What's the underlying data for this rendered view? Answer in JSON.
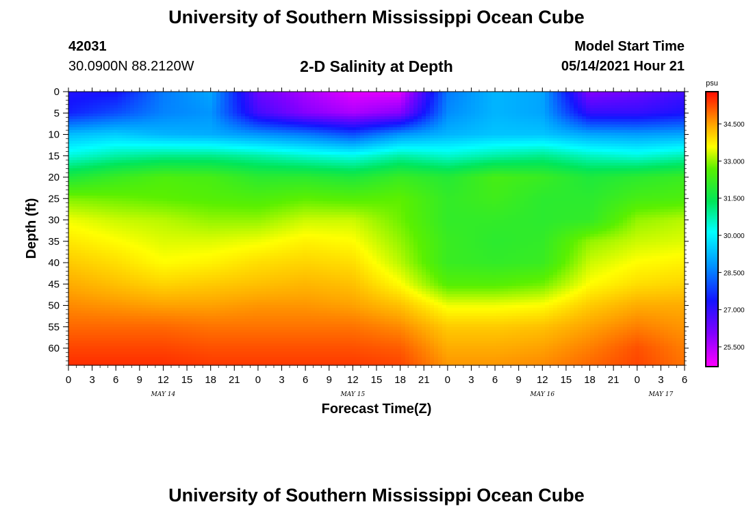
{
  "header": {
    "title": "University of Southern Mississippi Ocean Cube",
    "station_id": "42031",
    "location": "30.0900N  88.2120W",
    "plot_title": "2-D Salinity at Depth",
    "model_label": "Model Start Time",
    "model_time": "05/14/2021 Hour 21"
  },
  "footer": {
    "title": "University of Southern Mississippi Ocean Cube"
  },
  "chart_data": {
    "type": "heatmap",
    "title": "2-D Salinity at Depth",
    "xlabel": "Forecast Time(Z)",
    "ylabel": "Depth (ft)",
    "x_tick_labels": [
      "0",
      "3",
      "6",
      "9",
      "12",
      "15",
      "18",
      "21",
      "0",
      "3",
      "6",
      "9",
      "12",
      "15",
      "18",
      "21",
      "0",
      "3",
      "6",
      "9",
      "12",
      "15",
      "18",
      "21",
      "0",
      "3",
      "6"
    ],
    "date_labels": [
      {
        "label": "MAY 14",
        "hour": 12
      },
      {
        "label": "MAY 15",
        "hour": 36
      },
      {
        "label": "MAY 16",
        "hour": 60
      },
      {
        "label": "MAY 17",
        "hour": 75
      }
    ],
    "x_range_hours": [
      0,
      78
    ],
    "y_tick_labels": [
      "0",
      "5",
      "10",
      "15",
      "20",
      "25",
      "30",
      "35",
      "40",
      "45",
      "50",
      "55",
      "60"
    ],
    "ylim": [
      0,
      64
    ],
    "colorbar": {
      "unit": "psu",
      "range": [
        24.7,
        35.8
      ],
      "tick_labels": [
        "34.500",
        "33.000",
        "31.500",
        "30.000",
        "28.500",
        "27.000",
        "25.500"
      ],
      "tick_values": [
        34.5,
        33.0,
        31.5,
        30.0,
        28.5,
        27.0,
        25.5
      ]
    },
    "depths_ft": [
      0,
      5,
      10,
      15,
      20,
      25,
      30,
      35,
      40,
      45,
      50,
      55,
      60,
      64
    ],
    "hours": [
      0,
      6,
      12,
      18,
      24,
      30,
      36,
      42,
      48,
      54,
      60,
      66,
      72,
      78
    ],
    "salinity_psu": [
      [
        27.2,
        27.3,
        28.5,
        29.0,
        26.3,
        25.6,
        25.0,
        25.0,
        28.5,
        29.2,
        29.0,
        26.0,
        26.3,
        26.8
      ],
      [
        27.5,
        28.0,
        28.6,
        28.8,
        26.8,
        26.0,
        25.6,
        26.0,
        28.7,
        29.2,
        29.0,
        27.0,
        27.0,
        27.3
      ],
      [
        29.3,
        29.5,
        29.2,
        29.1,
        28.8,
        28.5,
        28.0,
        28.8,
        29.2,
        29.4,
        29.4,
        29.0,
        28.9,
        29.0
      ],
      [
        30.4,
        30.8,
        31.0,
        31.0,
        30.8,
        30.5,
        30.3,
        30.8,
        30.5,
        30.8,
        31.0,
        30.6,
        30.4,
        30.7
      ],
      [
        31.8,
        32.2,
        32.5,
        32.4,
        32.0,
        32.0,
        31.8,
        32.2,
        31.9,
        32.4,
        32.2,
        31.8,
        32.0,
        32.2
      ],
      [
        32.9,
        32.8,
        32.7,
        32.6,
        32.5,
        32.7,
        32.6,
        32.7,
        32.1,
        32.3,
        32.0,
        32.0,
        32.4,
        32.5
      ],
      [
        33.5,
        33.3,
        33.2,
        33.0,
        33.0,
        33.3,
        33.3,
        32.8,
        32.1,
        32.1,
        32.0,
        32.1,
        33.0,
        33.2
      ],
      [
        33.8,
        33.6,
        33.4,
        33.4,
        33.5,
        33.7,
        33.6,
        33.0,
        32.2,
        32.0,
        32.1,
        33.0,
        33.3,
        33.4
      ],
      [
        34.1,
        33.9,
        33.6,
        33.7,
        33.9,
        34.0,
        33.9,
        33.2,
        32.2,
        32.1,
        32.2,
        33.3,
        33.6,
        33.7
      ],
      [
        34.4,
        34.2,
        34.0,
        34.1,
        34.2,
        34.3,
        34.2,
        33.6,
        32.6,
        32.6,
        32.8,
        33.6,
        33.9,
        34.0
      ],
      [
        34.7,
        34.6,
        34.5,
        34.5,
        34.6,
        34.6,
        34.5,
        34.2,
        33.5,
        33.5,
        33.6,
        34.1,
        34.4,
        34.4
      ],
      [
        35.0,
        35.0,
        35.0,
        34.9,
        34.9,
        34.9,
        34.9,
        34.7,
        34.1,
        34.1,
        34.2,
        34.5,
        34.8,
        34.6
      ],
      [
        35.3,
        35.3,
        35.3,
        35.2,
        35.2,
        35.2,
        35.2,
        35.1,
        34.4,
        34.4,
        34.5,
        34.8,
        35.2,
        34.8
      ],
      [
        35.5,
        35.5,
        35.5,
        35.4,
        35.4,
        35.4,
        35.4,
        35.3,
        34.6,
        34.6,
        34.7,
        35.0,
        35.3,
        34.9
      ]
    ]
  }
}
